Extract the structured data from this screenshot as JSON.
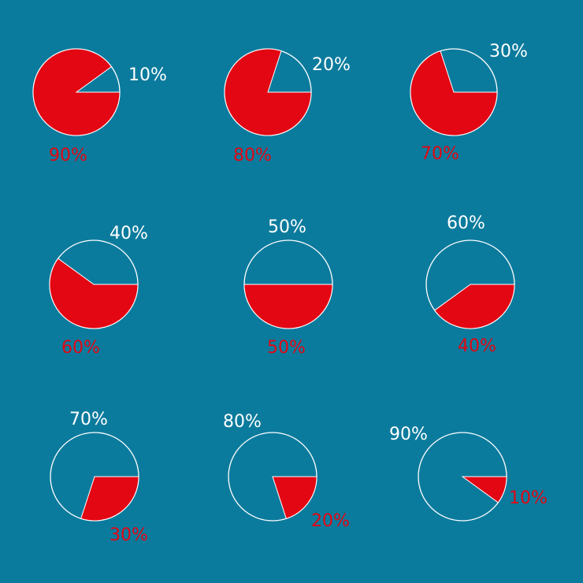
{
  "colors": {
    "background": "#0b7b9d",
    "filled": "#e30613",
    "empty_outline": "#ffffff",
    "empty_text": "#ffffff",
    "filled_text": "#e30613"
  },
  "chart_data": [
    {
      "type": "pie",
      "slices": [
        {
          "name": "filled",
          "value": 90,
          "label": "90%"
        },
        {
          "name": "empty",
          "value": 10,
          "label": "10%"
        }
      ]
    },
    {
      "type": "pie",
      "slices": [
        {
          "name": "filled",
          "value": 80,
          "label": "80%"
        },
        {
          "name": "empty",
          "value": 20,
          "label": "20%"
        }
      ]
    },
    {
      "type": "pie",
      "slices": [
        {
          "name": "filled",
          "value": 70,
          "label": "70%"
        },
        {
          "name": "empty",
          "value": 30,
          "label": "30%"
        }
      ]
    },
    {
      "type": "pie",
      "slices": [
        {
          "name": "filled",
          "value": 60,
          "label": "60%"
        },
        {
          "name": "empty",
          "value": 40,
          "label": "40%"
        }
      ]
    },
    {
      "type": "pie",
      "slices": [
        {
          "name": "filled",
          "value": 50,
          "label": "50%"
        },
        {
          "name": "empty",
          "value": 50,
          "label": "50%"
        }
      ]
    },
    {
      "type": "pie",
      "slices": [
        {
          "name": "filled",
          "value": 40,
          "label": "40%"
        },
        {
          "name": "empty",
          "value": 60,
          "label": "60%"
        }
      ]
    },
    {
      "type": "pie",
      "slices": [
        {
          "name": "filled",
          "value": 30,
          "label": "30%"
        },
        {
          "name": "empty",
          "value": 70,
          "label": "70%"
        }
      ]
    },
    {
      "type": "pie",
      "slices": [
        {
          "name": "filled",
          "value": 20,
          "label": "20%"
        },
        {
          "name": "empty",
          "value": 80,
          "label": "80%"
        }
      ]
    },
    {
      "type": "pie",
      "slices": [
        {
          "name": "filled",
          "value": 10,
          "label": "10%"
        },
        {
          "name": "empty",
          "value": 90,
          "label": "90%"
        }
      ]
    }
  ]
}
